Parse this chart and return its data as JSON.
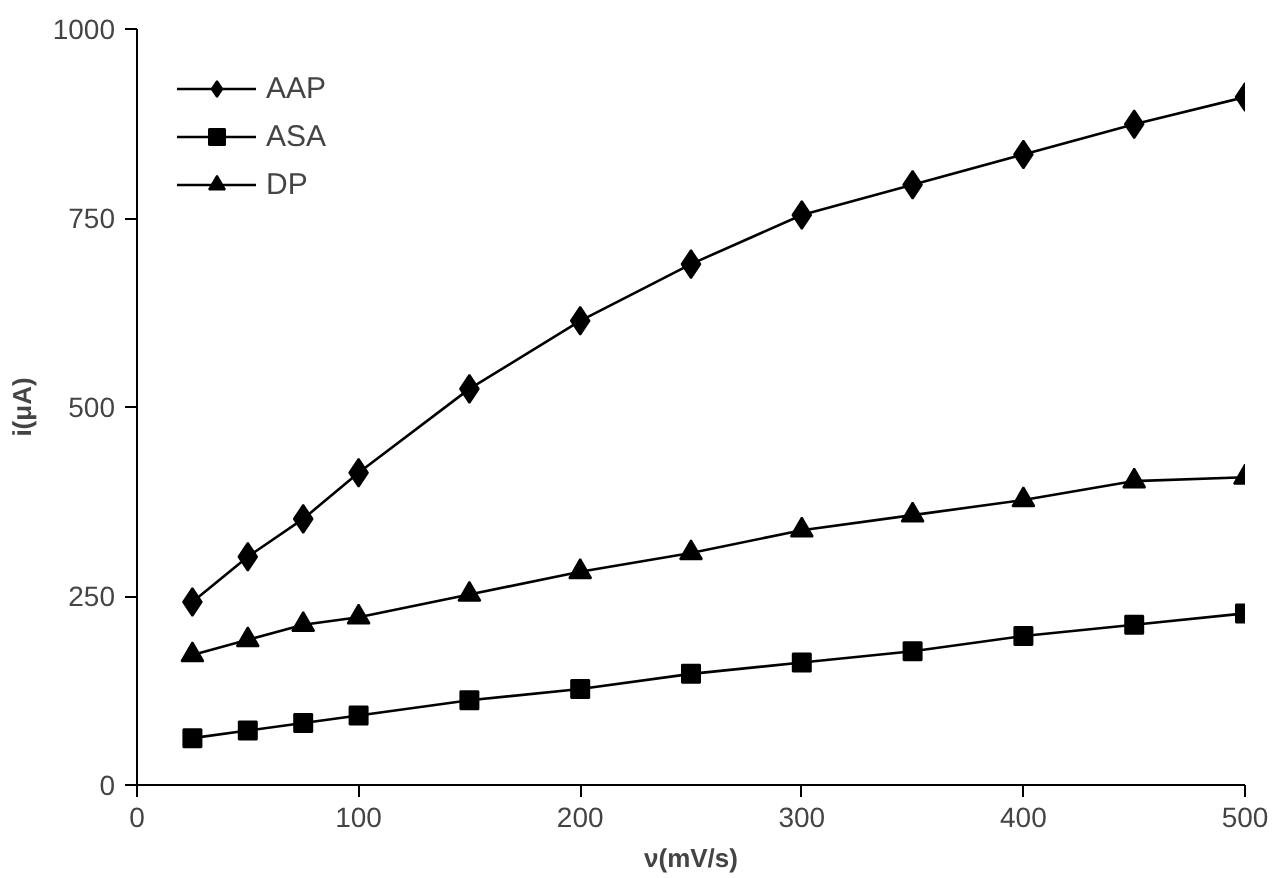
{
  "chart_data": {
    "type": "line",
    "xlabel": "ν(mV/s)",
    "ylabel": "i(μA)",
    "x": [
      25,
      50,
      75,
      100,
      150,
      200,
      250,
      300,
      350,
      400,
      450,
      500
    ],
    "xlim": [
      0,
      500
    ],
    "xticks": [
      0,
      100,
      200,
      300,
      400,
      500
    ],
    "ylim": [
      0,
      1000
    ],
    "yticks": [
      0,
      250,
      500,
      750,
      1000
    ],
    "grid": false,
    "legend": "top left",
    "line_style": "solid",
    "series": [
      {
        "name": "AAP",
        "color": "#000000",
        "marker": "diamond",
        "values": [
          242,
          302,
          352,
          413,
          524,
          614,
          689,
          754,
          794,
          834,
          874,
          910
        ]
      },
      {
        "name": "ASA",
        "color": "#000000",
        "marker": "square",
        "values": [
          62,
          72,
          82,
          92,
          112,
          127,
          147,
          162,
          177,
          197,
          212,
          227
        ]
      },
      {
        "name": "DP",
        "color": "#000000",
        "marker": "triangle",
        "values": [
          172,
          192,
          212,
          222,
          252,
          282,
          307,
          337,
          357,
          377,
          402,
          407
        ]
      }
    ]
  }
}
